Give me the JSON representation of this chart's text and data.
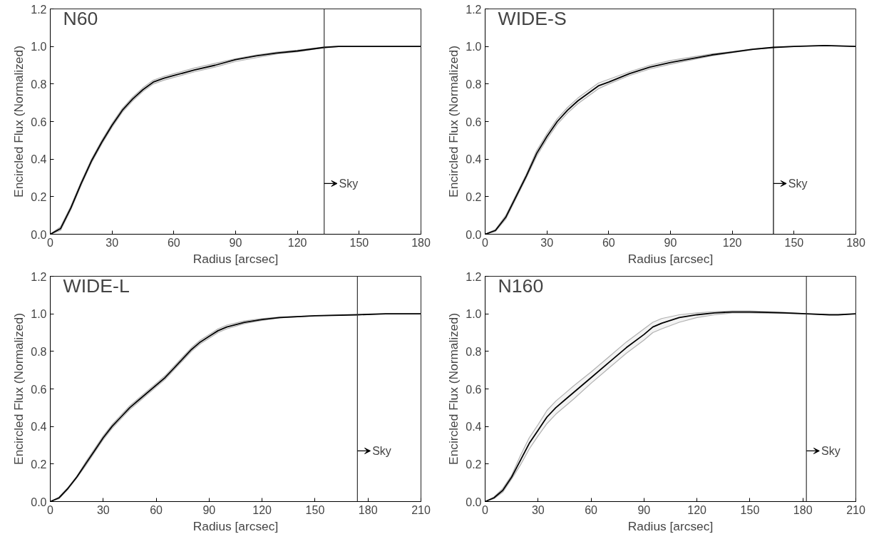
{
  "chart_data": [
    {
      "type": "line",
      "title": "N60",
      "xlabel": "Radius [arcsec]",
      "ylabel": "Encircled Flux (Normalized)",
      "xlim": [
        0,
        180
      ],
      "ylim": [
        0,
        1.2
      ],
      "xticks": [
        0,
        30,
        60,
        90,
        120,
        150,
        180
      ],
      "yticks": [
        {
          "value": 0,
          "label": "0.0"
        },
        {
          "value": 0.2,
          "label": "0.2"
        },
        {
          "value": 0.4,
          "label": "0.4"
        },
        {
          "value": 0.6,
          "label": "0.6"
        },
        {
          "value": 0.8,
          "label": "0.8"
        },
        {
          "value": 1,
          "label": "1.0"
        },
        {
          "value": 1.2,
          "label": "1.2"
        }
      ],
      "grid": false,
      "line_style": "solid",
      "marker": "none",
      "x": [
        0,
        5,
        10,
        15,
        20,
        25,
        30,
        35,
        40,
        45,
        50,
        55,
        60,
        70,
        80,
        90,
        100,
        110,
        120,
        133,
        140,
        150,
        160,
        170,
        180
      ],
      "series": [
        {
          "color": "#000000",
          "values": [
            0,
            0.03,
            0.14,
            0.27,
            0.39,
            0.49,
            0.58,
            0.66,
            0.72,
            0.77,
            0.81,
            0.83,
            0.845,
            0.875,
            0.9,
            0.93,
            0.95,
            0.965,
            0.976,
            0.995,
            1.0,
            1.0,
            1.0,
            1.0,
            1.0
          ],
          "lower": [
            0,
            0.02,
            0.13,
            0.26,
            0.38,
            0.48,
            0.57,
            0.65,
            0.71,
            0.76,
            0.8,
            0.82,
            0.835,
            0.865,
            0.89,
            0.92,
            0.94,
            0.96,
            0.972,
            0.993,
            0.999,
            1.0,
            1.0,
            1.0,
            1.0
          ],
          "upper": [
            0,
            0.04,
            0.15,
            0.28,
            0.4,
            0.5,
            0.59,
            0.67,
            0.73,
            0.78,
            0.82,
            0.84,
            0.855,
            0.885,
            0.91,
            0.935,
            0.955,
            0.97,
            0.98,
            0.997,
            1.001,
            1.0,
            1.0,
            1.0,
            1.0
          ]
        }
      ],
      "ref_lines": [
        {
          "axis": "x",
          "value": 133,
          "label": "Sky",
          "color": "#333333"
        }
      ]
    },
    {
      "type": "line",
      "title": "WIDE-S",
      "xlabel": "Radius [arcsec]",
      "ylabel": "Encircled Flux (Normalized)",
      "xlim": [
        0,
        180
      ],
      "ylim": [
        0,
        1.2
      ],
      "xticks": [
        0,
        30,
        60,
        90,
        120,
        150,
        180
      ],
      "yticks": [
        {
          "value": 0,
          "label": "0.0"
        },
        {
          "value": 0.2,
          "label": "0.2"
        },
        {
          "value": 0.4,
          "label": "0.4"
        },
        {
          "value": 0.6,
          "label": "0.6"
        },
        {
          "value": 0.8,
          "label": "0.8"
        },
        {
          "value": 1,
          "label": "1.0"
        },
        {
          "value": 1.2,
          "label": "1.2"
        }
      ],
      "grid": false,
      "line_style": "solid",
      "marker": "none",
      "x": [
        0,
        5,
        10,
        15,
        20,
        25,
        30,
        35,
        40,
        45,
        50,
        55,
        60,
        70,
        80,
        90,
        100,
        110,
        120,
        130,
        140,
        150,
        165,
        180
      ],
      "series": [
        {
          "color": "#000000",
          "values": [
            0,
            0.02,
            0.09,
            0.2,
            0.31,
            0.43,
            0.52,
            0.6,
            0.66,
            0.71,
            0.75,
            0.79,
            0.81,
            0.855,
            0.89,
            0.915,
            0.935,
            0.955,
            0.97,
            0.985,
            0.995,
            1.0,
            1.005,
            1.0
          ],
          "lower": [
            0,
            0.015,
            0.08,
            0.19,
            0.3,
            0.415,
            0.505,
            0.585,
            0.645,
            0.695,
            0.735,
            0.775,
            0.8,
            0.845,
            0.88,
            0.905,
            0.928,
            0.95,
            0.967,
            0.983,
            0.994,
            1.0,
            1.005,
            1.0
          ],
          "upper": [
            0,
            0.025,
            0.1,
            0.21,
            0.32,
            0.445,
            0.535,
            0.615,
            0.675,
            0.725,
            0.765,
            0.805,
            0.825,
            0.865,
            0.9,
            0.925,
            0.943,
            0.96,
            0.973,
            0.987,
            0.996,
            1.0,
            1.005,
            1.0
          ]
        }
      ],
      "ref_lines": [
        {
          "axis": "x",
          "value": 140,
          "label": "Sky",
          "color": "#000000"
        }
      ]
    },
    {
      "type": "line",
      "title": "WIDE-L",
      "xlabel": "Radius [arcsec]",
      "ylabel": "Encircled Flux (Normalized)",
      "xlim": [
        0,
        210
      ],
      "ylim": [
        0,
        1.2
      ],
      "xticks": [
        0,
        30,
        60,
        90,
        120,
        150,
        180,
        210
      ],
      "yticks": [
        {
          "value": 0,
          "label": "0.0"
        },
        {
          "value": 0.2,
          "label": "0.2"
        },
        {
          "value": 0.4,
          "label": "0.4"
        },
        {
          "value": 0.6,
          "label": "0.6"
        },
        {
          "value": 0.8,
          "label": "0.8"
        },
        {
          "value": 1,
          "label": "1.0"
        },
        {
          "value": 1.2,
          "label": "1.2"
        }
      ],
      "grid": false,
      "line_style": "solid",
      "marker": "none",
      "x": [
        0,
        5,
        10,
        15,
        20,
        25,
        30,
        35,
        40,
        45,
        50,
        55,
        60,
        65,
        70,
        75,
        80,
        85,
        90,
        95,
        100,
        110,
        120,
        130,
        150,
        174,
        190,
        210
      ],
      "series": [
        {
          "color": "#000000",
          "values": [
            0,
            0.02,
            0.07,
            0.13,
            0.2,
            0.27,
            0.34,
            0.4,
            0.45,
            0.5,
            0.54,
            0.58,
            0.62,
            0.66,
            0.71,
            0.76,
            0.81,
            0.85,
            0.88,
            0.91,
            0.93,
            0.955,
            0.97,
            0.98,
            0.99,
            0.995,
            1.0,
            1.0
          ],
          "lower": [
            0,
            0.015,
            0.065,
            0.125,
            0.19,
            0.26,
            0.33,
            0.39,
            0.44,
            0.49,
            0.53,
            0.57,
            0.61,
            0.65,
            0.7,
            0.75,
            0.8,
            0.84,
            0.87,
            0.9,
            0.92,
            0.948,
            0.965,
            0.978,
            0.99,
            0.995,
            1.0,
            1.0
          ],
          "upper": [
            0,
            0.025,
            0.075,
            0.135,
            0.21,
            0.28,
            0.35,
            0.41,
            0.46,
            0.51,
            0.55,
            0.59,
            0.63,
            0.67,
            0.72,
            0.77,
            0.82,
            0.86,
            0.89,
            0.92,
            0.94,
            0.962,
            0.975,
            0.983,
            0.99,
            0.995,
            1.0,
            1.0
          ]
        }
      ],
      "ref_lines": [
        {
          "axis": "x",
          "value": 174,
          "label": "Sky",
          "color": "#333333"
        }
      ]
    },
    {
      "type": "line",
      "title": "N160",
      "xlabel": "Radius [arcsec]",
      "ylabel": "Encircled Flux (Normalized)",
      "xlim": [
        0,
        210
      ],
      "ylim": [
        0,
        1.2
      ],
      "xticks": [
        0,
        30,
        60,
        90,
        120,
        150,
        180,
        210
      ],
      "yticks": [
        {
          "value": 0,
          "label": "0.0"
        },
        {
          "value": 0.2,
          "label": "0.2"
        },
        {
          "value": 0.4,
          "label": "0.4"
        },
        {
          "value": 0.6,
          "label": "0.6"
        },
        {
          "value": 0.8,
          "label": "0.8"
        },
        {
          "value": 1,
          "label": "1.0"
        },
        {
          "value": 1.2,
          "label": "1.2"
        }
      ],
      "grid": false,
      "line_style": "solid",
      "marker": "none",
      "x": [
        0,
        5,
        10,
        15,
        20,
        25,
        30,
        35,
        40,
        45,
        50,
        60,
        70,
        80,
        90,
        95,
        100,
        110,
        120,
        130,
        140,
        150,
        160,
        170,
        182,
        195,
        200,
        210
      ],
      "series": [
        {
          "color": "#000000",
          "values": [
            0,
            0.02,
            0.06,
            0.13,
            0.22,
            0.31,
            0.38,
            0.45,
            0.5,
            0.54,
            0.58,
            0.66,
            0.74,
            0.82,
            0.89,
            0.93,
            0.95,
            0.98,
            0.995,
            1.005,
            1.01,
            1.01,
            1.008,
            1.005,
            1.0,
            0.995,
            0.995,
            1.0
          ],
          "lower": [
            0,
            0.015,
            0.05,
            0.12,
            0.195,
            0.28,
            0.35,
            0.415,
            0.465,
            0.505,
            0.545,
            0.63,
            0.71,
            0.79,
            0.86,
            0.9,
            0.92,
            0.955,
            0.98,
            0.995,
            1.005,
            1.005,
            1.003,
            1.002,
            1.0,
            0.995,
            0.995,
            1.0
          ],
          "upper": [
            0,
            0.025,
            0.07,
            0.14,
            0.245,
            0.34,
            0.41,
            0.485,
            0.535,
            0.575,
            0.615,
            0.69,
            0.77,
            0.85,
            0.92,
            0.955,
            0.975,
            0.995,
            1.005,
            1.012,
            1.015,
            1.015,
            1.012,
            1.008,
            1.0,
            0.995,
            0.995,
            1.0
          ]
        }
      ],
      "ref_lines": [
        {
          "axis": "x",
          "value": 182,
          "label": "Sky",
          "color": "#333333"
        }
      ]
    }
  ]
}
